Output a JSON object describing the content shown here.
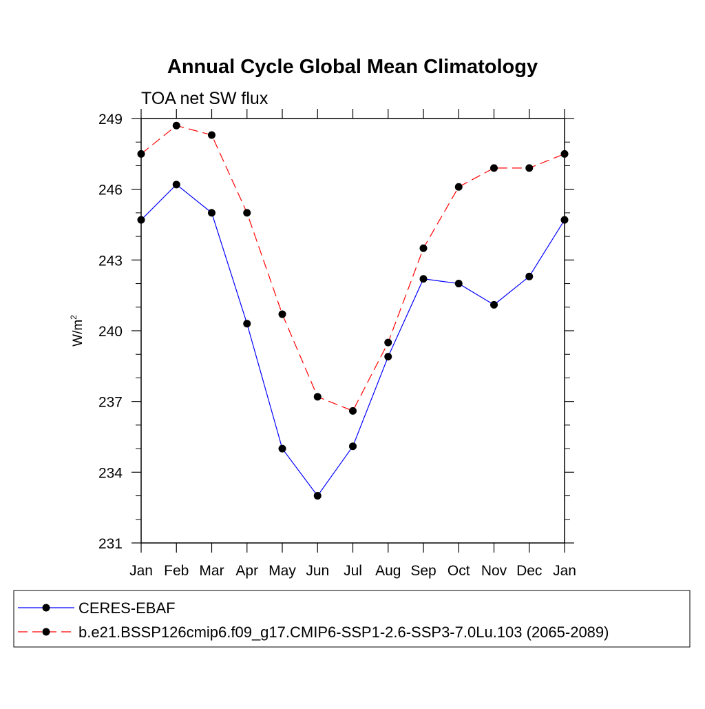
{
  "chart_data": {
    "type": "line",
    "title": "Annual Cycle Global Mean Climatology",
    "subtitle": "TOA net SW flux",
    "ylabel": "W/m",
    "ylabel_superscript": "2",
    "xlabel": "",
    "categories": [
      "Jan",
      "Feb",
      "Mar",
      "Apr",
      "May",
      "Jun",
      "Jul",
      "Aug",
      "Sep",
      "Oct",
      "Nov",
      "Dec",
      "Jan"
    ],
    "ylim": [
      231,
      249
    ],
    "yticks": [
      "231",
      "234",
      "237",
      "240",
      "243",
      "246",
      "249"
    ],
    "grid": false,
    "legend_placement": "bottom",
    "series": [
      {
        "name": "CERES-EBAF",
        "color": "#0000ff",
        "dash": "solid",
        "marker": "filled-circle",
        "values": [
          244.7,
          246.2,
          245.0,
          240.3,
          235.0,
          233.0,
          235.1,
          238.9,
          242.2,
          242.0,
          241.1,
          242.3,
          244.7
        ]
      },
      {
        "name": "b.e21.BSSP126cmip6.f09_g17.CMIP6-SSP1-2.6-SSP3-7.0Lu.103 (2065-2089)",
        "color": "#ff0000",
        "dash": "dashed",
        "marker": "filled-circle",
        "values": [
          247.5,
          248.7,
          248.3,
          245.0,
          240.7,
          237.2,
          236.6,
          239.5,
          243.5,
          246.1,
          246.9,
          246.9,
          247.5
        ]
      }
    ]
  }
}
